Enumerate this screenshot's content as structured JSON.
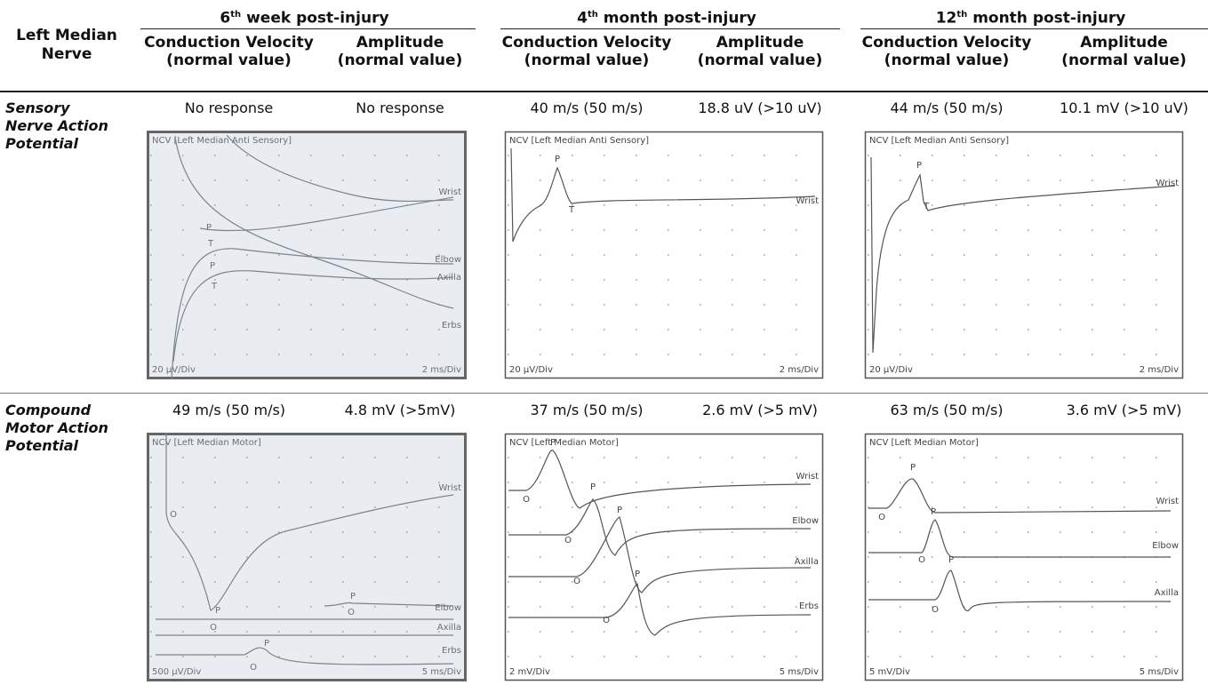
{
  "table": {
    "corner": [
      "Left Median",
      "Nerve"
    ],
    "groups": [
      {
        "number": "6",
        "suffix": "th",
        "text": "week post-injury"
      },
      {
        "number": "4",
        "suffix": "th",
        "text": "month post-injury"
      },
      {
        "number": "12",
        "suffix": "th",
        "text": "month post-injury"
      }
    ],
    "subheaders": [
      [
        "Conduction Velocity",
        "(normal value)"
      ],
      [
        "Amplitude",
        "(normal value)"
      ],
      [
        "Conduction Velocity",
        "(normal value)"
      ],
      [
        "Amplitude",
        "(normal value)"
      ],
      [
        "Conduction Velocity",
        "(normal value)"
      ],
      [
        "Amplitude",
        "(normal value)"
      ]
    ],
    "rows": [
      {
        "label": [
          "Sensory",
          "Nerve Action",
          "Potential"
        ],
        "values": [
          "No response",
          "No response",
          "40 m/s (50 m/s)",
          "18.8 uV (>10 uV)",
          "44 m/s (50 m/s)",
          "10.1 mV (>10 uV)"
        ],
        "panels": [
          {
            "title": "NCV [Left Median Anti Sensory]",
            "sensitivity": "20 µV/Div",
            "sweep": "2 ms/Div",
            "traces": [
              "Wrist",
              "Elbow",
              "Axilla",
              "Erbs"
            ],
            "markers": [
              "P",
              "T",
              "P",
              "T"
            ]
          },
          {
            "title": "NCV [Left Median Anti Sensory]",
            "sensitivity": "20 µV/Div",
            "sweep": "2 ms/Div",
            "traces": [
              "Wrist"
            ],
            "markers": [
              "P",
              "T"
            ]
          },
          {
            "title": "NCV [Left Median Anti Sensory]",
            "sensitivity": "20 µV/Div",
            "sweep": "2 ms/Div",
            "traces": [
              "Wrist"
            ],
            "markers": [
              "P",
              "T"
            ]
          }
        ]
      },
      {
        "label": [
          "Compound",
          "Motor Action",
          "Potential"
        ],
        "values": [
          "49 m/s (50 m/s)",
          "4.8 mV (>5mV)",
          "37 m/s (50 m/s)",
          "2.6 mV (>5 mV)",
          "63 m/s (50 m/s)",
          "3.6 mV (>5 mV)"
        ],
        "panels": [
          {
            "title": "NCV [Left Median Motor]",
            "sensitivity": "500 µV/Div",
            "sweep": "5 ms/Div",
            "traces": [
              "Wrist",
              "Elbow",
              "Axilla",
              "Erbs"
            ],
            "markers": [
              "O",
              "P",
              "O",
              "P",
              "O",
              "P",
              "O"
            ]
          },
          {
            "title": "NCV [Left Median Motor]",
            "sensitivity": "2 mV/Div",
            "sweep": "5 ms/Div",
            "traces": [
              "Wrist",
              "Elbow",
              "Axilla",
              "Erbs"
            ],
            "markers": [
              "P",
              "O",
              "P",
              "O",
              "P",
              "O",
              "P",
              "O"
            ]
          },
          {
            "title": "NCV [Left Median Motor]",
            "sensitivity": "5 mV/Div",
            "sweep": "5 ms/Div",
            "traces": [
              "Wrist",
              "Elbow",
              "Axilla"
            ],
            "markers": [
              "P",
              "O",
              "P",
              "O",
              "P",
              "O"
            ]
          }
        ]
      }
    ]
  }
}
